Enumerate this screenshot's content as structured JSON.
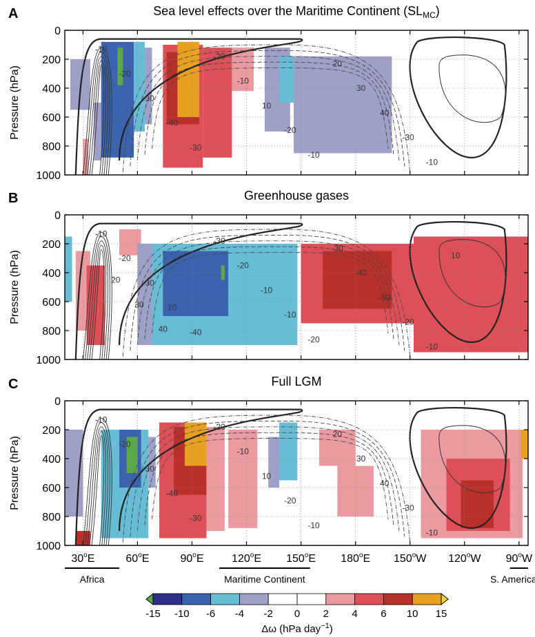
{
  "chart_data": [
    {
      "panel": "A",
      "type": "heatmap",
      "title": "Sea level effects over the Maritime Continent (SL",
      "title_sub": "MC",
      "title_end": ")",
      "ylabel": "Pressure (hPa)",
      "yticks": [
        0,
        200,
        400,
        600,
        800,
        1000
      ],
      "ylim": [
        1000,
        0
      ],
      "xlim": [
        20,
        275
      ],
      "contour_labels": [
        "-10",
        "-20",
        "-30",
        "-40",
        "-30",
        "-20",
        "-10",
        "10",
        "-20",
        "-10",
        "20",
        "30",
        "40",
        "-30",
        "-10"
      ],
      "cells": [
        {
          "lon": [
            46,
            51
          ],
          "p": [
            120,
            260
          ],
          "v": -12
        },
        {
          "lon": [
            40,
            58
          ],
          "p": [
            80,
            880
          ],
          "v": -8
        },
        {
          "lon": [
            58,
            64
          ],
          "p": [
            80,
            700
          ],
          "v": -5
        },
        {
          "lon": [
            36,
            40
          ],
          "p": [
            500,
            900
          ],
          "v": -3
        },
        {
          "lon": [
            64,
            68
          ],
          "p": [
            120,
            650
          ],
          "v": -3
        },
        {
          "lon": [
            49,
            52
          ],
          "p": [
            120,
            380
          ],
          "v": -16
        },
        {
          "lon": [
            23,
            34
          ],
          "p": [
            200,
            550
          ],
          "v": -3
        },
        {
          "lon": [
            30,
            33
          ],
          "p": [
            750,
            1000
          ],
          "v": 3
        },
        {
          "lon": [
            74,
            96
          ],
          "p": [
            100,
            950
          ],
          "v": 5
        },
        {
          "lon": [
            76,
            94
          ],
          "p": [
            150,
            650
          ],
          "v": 8
        },
        {
          "lon": [
            82,
            94
          ],
          "p": [
            80,
            600
          ],
          "v": 12
        },
        {
          "lon": [
            96,
            112
          ],
          "p": [
            120,
            880
          ],
          "v": 4
        },
        {
          "lon": [
            112,
            124
          ],
          "p": [
            120,
            420
          ],
          "v": 3
        },
        {
          "lon": [
            130,
            144
          ],
          "p": [
            120,
            700
          ],
          "v": -3
        },
        {
          "lon": [
            138,
            146
          ],
          "p": [
            180,
            500
          ],
          "v": -5
        },
        {
          "lon": [
            146,
            200
          ],
          "p": [
            180,
            850
          ],
          "v": -3
        }
      ]
    },
    {
      "panel": "B",
      "type": "heatmap",
      "title": "Greenhouse gases",
      "ylabel": "Pressure (hPa)",
      "yticks": [
        0,
        200,
        400,
        600,
        800,
        1000
      ],
      "ylim": [
        1000,
        0
      ],
      "xlim": [
        20,
        275
      ],
      "contour_labels": [
        "-10",
        "-20",
        "-30",
        "10",
        "-40",
        "-30",
        "-20",
        "-10",
        "-10",
        "-20",
        "-30",
        "-40",
        "-30",
        "-20",
        "-10",
        "10",
        "20",
        "30",
        "40"
      ],
      "cells": [
        {
          "lon": [
            20,
            24
          ],
          "p": [
            150,
            600
          ],
          "v": -5
        },
        {
          "lon": [
            26,
            34
          ],
          "p": [
            250,
            800
          ],
          "v": 3
        },
        {
          "lon": [
            32,
            42
          ],
          "p": [
            350,
            900
          ],
          "v": 5
        },
        {
          "lon": [
            50,
            62
          ],
          "p": [
            100,
            280
          ],
          "v": 3
        },
        {
          "lon": [
            60,
            80
          ],
          "p": [
            200,
            900
          ],
          "v": -3
        },
        {
          "lon": [
            68,
            148
          ],
          "p": [
            200,
            900
          ],
          "v": -5
        },
        {
          "lon": [
            74,
            110
          ],
          "p": [
            250,
            700
          ],
          "v": -8
        },
        {
          "lon": [
            110,
            148
          ],
          "p": [
            250,
            800
          ],
          "v": -6
        },
        {
          "lon": [
            106,
            108
          ],
          "p": [
            350,
            450
          ],
          "v": -16
        },
        {
          "lon": [
            150,
            212
          ],
          "p": [
            200,
            750
          ],
          "v": 4
        },
        {
          "lon": [
            162,
            200
          ],
          "p": [
            250,
            650
          ],
          "v": 8
        },
        {
          "lon": [
            212,
            275
          ],
          "p": [
            150,
            950
          ],
          "v": 4
        },
        {
          "lon": [
            225,
            268
          ],
          "p": [
            350,
            700
          ],
          "v": 5
        }
      ]
    },
    {
      "panel": "C",
      "type": "heatmap",
      "title": "Full LGM",
      "ylabel": "Pressure (hPa)",
      "yticks": [
        0,
        200,
        400,
        600,
        800,
        1000
      ],
      "ylim": [
        1000,
        0
      ],
      "xlim": [
        20,
        275
      ],
      "contour_labels": [
        "-10",
        "-20",
        "-30",
        "-40",
        "-30",
        "-20",
        "-10",
        "10",
        "-20",
        "-10",
        "20",
        "30",
        "40",
        "-30",
        "-10"
      ],
      "cells": [
        {
          "lon": [
            20,
            30
          ],
          "p": [
            200,
            800
          ],
          "v": -3
        },
        {
          "lon": [
            26,
            34
          ],
          "p": [
            900,
            1000
          ],
          "v": 8
        },
        {
          "lon": [
            40,
            66
          ],
          "p": [
            200,
            950
          ],
          "v": -5
        },
        {
          "lon": [
            50,
            62
          ],
          "p": [
            200,
            600
          ],
          "v": -8
        },
        {
          "lon": [
            54,
            60
          ],
          "p": [
            250,
            500
          ],
          "v": -16
        },
        {
          "lon": [
            66,
            70
          ],
          "p": [
            250,
            600
          ],
          "v": -3
        },
        {
          "lon": [
            72,
            98
          ],
          "p": [
            150,
            950
          ],
          "v": 5
        },
        {
          "lon": [
            80,
            98
          ],
          "p": [
            180,
            650
          ],
          "v": 8
        },
        {
          "lon": [
            86,
            98
          ],
          "p": [
            150,
            450
          ],
          "v": 12
        },
        {
          "lon": [
            98,
            108
          ],
          "p": [
            180,
            900
          ],
          "v": 3
        },
        {
          "lon": [
            110,
            126
          ],
          "p": [
            200,
            880
          ],
          "v": 3
        },
        {
          "lon": [
            138,
            148
          ],
          "p": [
            150,
            550
          ],
          "v": -6
        },
        {
          "lon": [
            132,
            138
          ],
          "p": [
            250,
            600
          ],
          "v": -3
        },
        {
          "lon": [
            160,
            180
          ],
          "p": [
            200,
            450
          ],
          "v": 3
        },
        {
          "lon": [
            170,
            190
          ],
          "p": [
            450,
            800
          ],
          "v": 3
        },
        {
          "lon": [
            216,
            272
          ],
          "p": [
            200,
            950
          ],
          "v": 3
        },
        {
          "lon": [
            230,
            265
          ],
          "p": [
            400,
            900
          ],
          "v": 5
        },
        {
          "lon": [
            238,
            256
          ],
          "p": [
            550,
            880
          ],
          "v": 8
        },
        {
          "lon": [
            271,
            275
          ],
          "p": [
            200,
            400
          ],
          "v": 12
        }
      ]
    }
  ],
  "x_axis": {
    "ticks": [
      {
        "lon": 30,
        "label": "30",
        "suffix": "E"
      },
      {
        "lon": 60,
        "label": "60",
        "suffix": "E"
      },
      {
        "lon": 90,
        "label": "90",
        "suffix": "E"
      },
      {
        "lon": 120,
        "label": "120",
        "suffix": "E"
      },
      {
        "lon": 150,
        "label": "150",
        "suffix": "E"
      },
      {
        "lon": 180,
        "label": "180",
        "suffix": "E"
      },
      {
        "lon": 210,
        "label": "150",
        "suffix": "W"
      },
      {
        "lon": 240,
        "label": "120",
        "suffix": "W"
      },
      {
        "lon": 270,
        "label": "90",
        "suffix": "W"
      }
    ],
    "degree_mark": "o"
  },
  "regions": [
    {
      "label": "Africa",
      "lon": [
        20,
        50
      ]
    },
    {
      "label": "Maritime Continent",
      "lon": [
        105,
        155
      ]
    },
    {
      "label": "S. America",
      "lon": [
        265,
        275
      ]
    }
  ],
  "colorbar": {
    "boundaries": [
      "-15",
      "-10",
      "-6",
      "-4",
      "-2",
      "0",
      "2",
      "4",
      "6",
      "10",
      "15"
    ],
    "colors": [
      "#2b2f87",
      "#3c63ad",
      "#67bdd6",
      "#9fa0c8",
      "#ffffff",
      "#ffffff",
      "#eb9ba0",
      "#de5058",
      "#b9302b",
      "#e8a020"
    ],
    "under_color": "#5aa84a",
    "over_color": "#f2d433",
    "label": "Δω (hPa day",
    "label_sup": "−1",
    "label_end": ")"
  }
}
